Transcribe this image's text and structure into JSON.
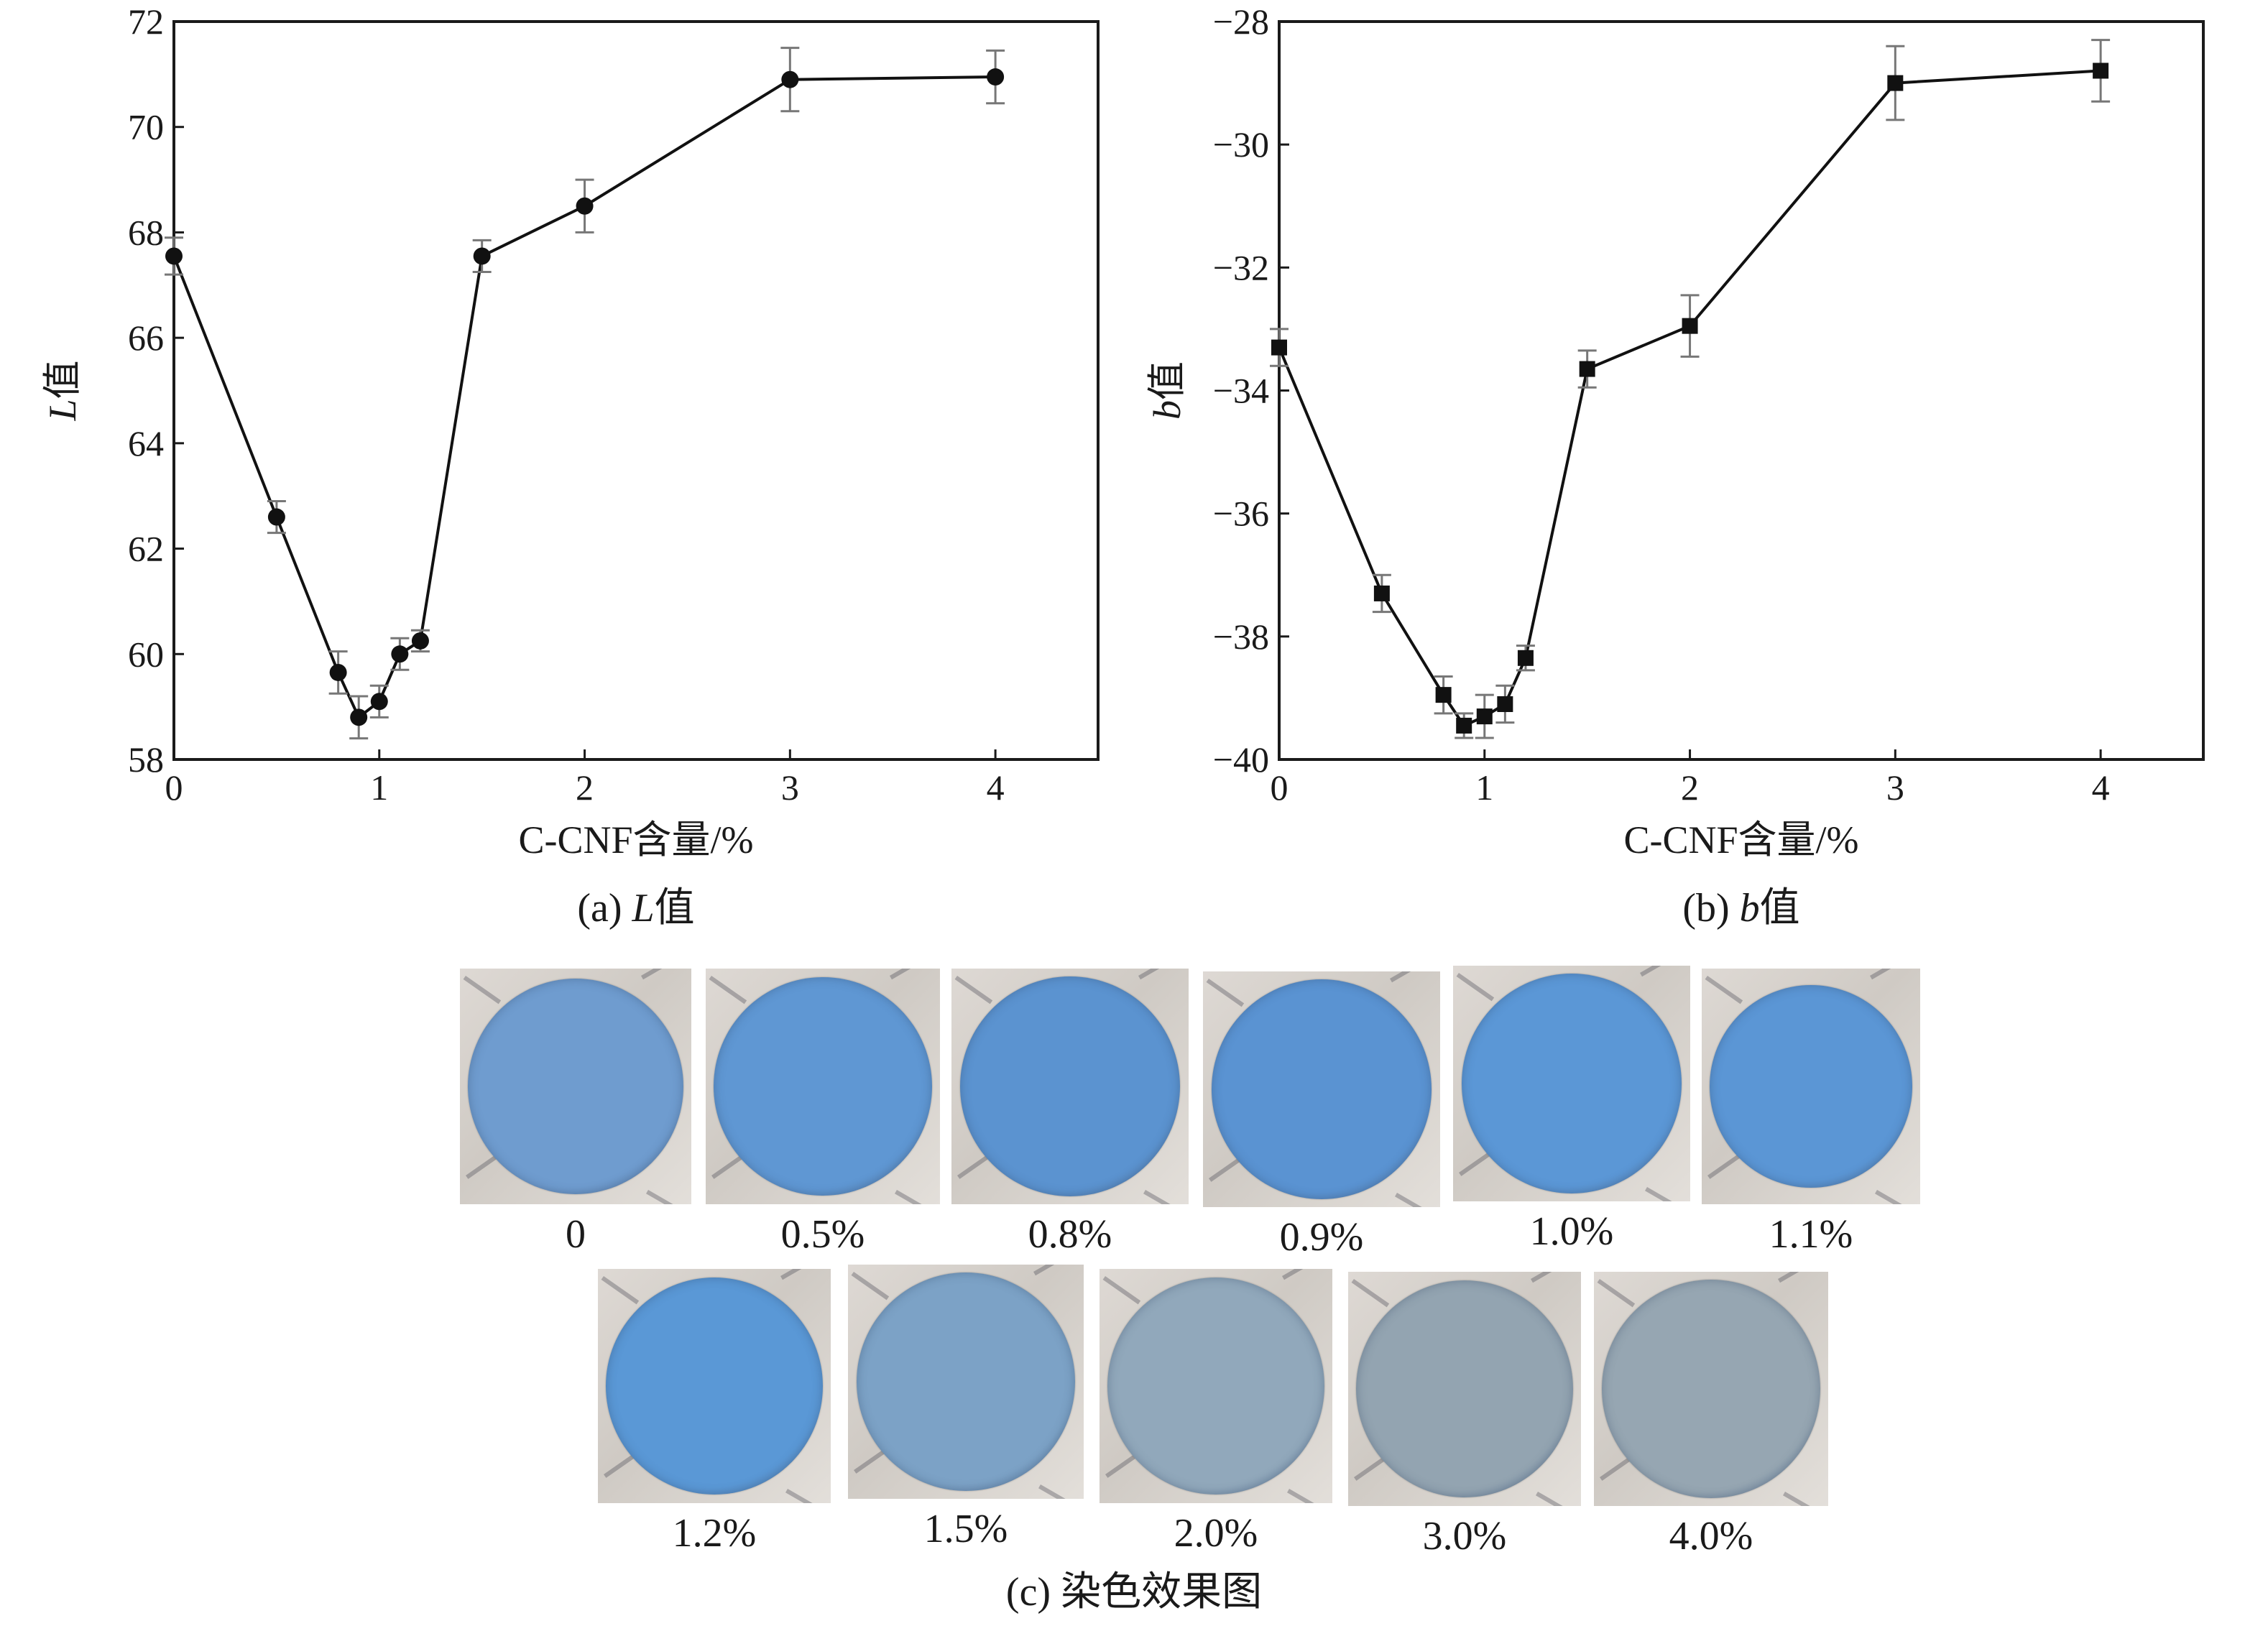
{
  "chart_data": [
    {
      "type": "line",
      "xlabel": "C-CNF含量/%",
      "ylabel": "L值",
      "caption": "(a) L值",
      "xlim": [
        0,
        4.5
      ],
      "ylim": [
        58,
        72
      ],
      "xticks": [
        0,
        1,
        2,
        3,
        4
      ],
      "yticks": [
        58,
        60,
        62,
        64,
        66,
        68,
        70,
        72
      ],
      "marker": "circle",
      "error_bars": true,
      "series": [
        {
          "x": [
            0,
            0.5,
            0.8,
            0.9,
            1.0,
            1.1,
            1.2,
            1.5,
            2.0,
            3.0,
            4.0
          ],
          "y": [
            67.55,
            62.6,
            59.65,
            58.8,
            59.1,
            60.0,
            60.25,
            67.55,
            68.5,
            70.9,
            70.95
          ],
          "err": [
            0.35,
            0.3,
            0.4,
            0.4,
            0.3,
            0.3,
            0.2,
            0.3,
            0.5,
            0.6,
            0.5
          ]
        }
      ]
    },
    {
      "type": "line",
      "xlabel": "C-CNF含量/%",
      "ylabel": "b值",
      "caption": "(b) b值",
      "xlim": [
        0,
        4.5
      ],
      "ylim": [
        -40,
        -28
      ],
      "xticks": [
        0,
        1,
        2,
        3,
        4
      ],
      "yticks": [
        -40,
        -38,
        -36,
        -34,
        -32,
        -30,
        -28
      ],
      "marker": "square",
      "error_bars": true,
      "series": [
        {
          "x": [
            0,
            0.5,
            0.8,
            0.9,
            1.0,
            1.1,
            1.2,
            1.5,
            2.0,
            3.0,
            4.0
          ],
          "y": [
            -33.3,
            -37.3,
            -38.95,
            -39.45,
            -39.3,
            -39.1,
            -38.35,
            -33.65,
            -32.95,
            -29.0,
            -28.8
          ],
          "err": [
            0.3,
            0.3,
            0.3,
            0.2,
            0.35,
            0.3,
            0.2,
            0.3,
            0.5,
            0.6,
            0.5
          ]
        }
      ]
    }
  ],
  "swatches": {
    "caption": "(c) 染色效果图",
    "items": [
      {
        "label": "0",
        "color": "#6f9ccf"
      },
      {
        "label": "0.5%",
        "color": "#5f97d3"
      },
      {
        "label": "0.8%",
        "color": "#5b93d0"
      },
      {
        "label": "0.9%",
        "color": "#5a93d2"
      },
      {
        "label": "1.0%",
        "color": "#5b97d6"
      },
      {
        "label": "1.1%",
        "color": "#5b96d5"
      },
      {
        "label": "1.2%",
        "color": "#5a98d6"
      },
      {
        "label": "1.5%",
        "color": "#7ca2c6"
      },
      {
        "label": "2.0%",
        "color": "#91a8bb"
      },
      {
        "label": "3.0%",
        "color": "#93a4b1"
      },
      {
        "label": "4.0%",
        "color": "#96a6b2"
      }
    ]
  },
  "colors": {
    "line": "#111111",
    "error_bar": "#777777",
    "axis": "#1a1a1a"
  }
}
